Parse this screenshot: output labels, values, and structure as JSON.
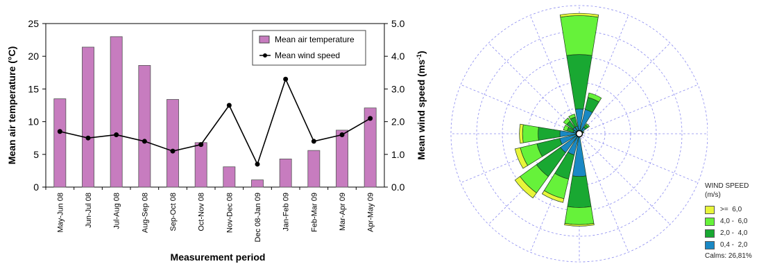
{
  "chart_data": [
    {
      "type": "bar",
      "xlabel": "Measurement period",
      "ylabel": "Mean air temperature (°C)",
      "y2label": "Mean wind speed (ms",
      "y2label_superscript": "-1",
      "y2label_close": ")",
      "categories": [
        "May-Jun 08",
        "Jun-Jul 08",
        "Jul-Aug 08",
        "Aug-Sep 08",
        "Sep-Oct 08",
        "Oct-Nov 08",
        "Nov-Dec 08",
        "Dec 08-Jan 09",
        "Jan-Feb 09",
        "Feb-Mar 09",
        "Mar-Apr 09",
        "Apr-May 09"
      ],
      "ylim": [
        0,
        25
      ],
      "yticks": [
        "0",
        "5",
        "10",
        "15",
        "20",
        "25"
      ],
      "y2lim": [
        0,
        5
      ],
      "y2ticks": [
        "0.0",
        "1.0",
        "2.0",
        "3.0",
        "4.0",
        "5.0"
      ],
      "series": [
        {
          "name": "Mean air temperature",
          "kind": "bar",
          "color": "#c77cbf",
          "values": [
            13.5,
            21.4,
            23.0,
            18.6,
            13.4,
            6.8,
            3.1,
            1.1,
            4.3,
            5.6,
            8.7,
            12.1
          ]
        },
        {
          "name": "Mean wind speed",
          "kind": "line",
          "axis": "right",
          "color": "#000000",
          "values": [
            1.7,
            1.5,
            1.6,
            1.4,
            1.1,
            1.3,
            2.5,
            0.7,
            3.3,
            1.4,
            1.6,
            2.1
          ]
        }
      ],
      "legend": "top-right"
    },
    {
      "type": "windrose",
      "legend_title_1": "WIND SPEED",
      "legend_title_2": "(m/s)",
      "bins": [
        {
          "label": ">=  6,0",
          "color": "#e8f53a"
        },
        {
          "label": "4,0 -  6,0",
          "color": "#66f23a"
        },
        {
          "label": "2,0 -  4,0",
          "color": "#19a832"
        },
        {
          "label": "0,4 -  2,0",
          "color": "#1a88c4"
        }
      ],
      "calms": "Calms: 26,81%",
      "rings": 5,
      "directions": [
        {
          "dir": 0,
          "values": [
            3.2,
            7.0,
            5.0,
            0.3
          ]
        },
        {
          "dir": 22.5,
          "values": [
            3.2,
            1.6,
            0.6,
            0.0
          ]
        },
        {
          "dir": 45,
          "values": [
            1.0,
            0.4,
            0.2,
            0.0
          ]
        },
        {
          "dir": 67.5,
          "values": [
            0.3,
            0.2,
            0.1,
            0.0
          ]
        },
        {
          "dir": 90,
          "values": [
            0.2,
            0.1,
            0.0,
            0.0
          ]
        },
        {
          "dir": 112.5,
          "values": [
            0.3,
            0.1,
            0.0,
            0.0
          ]
        },
        {
          "dir": 135,
          "values": [
            0.2,
            0.1,
            0.0,
            0.0
          ]
        },
        {
          "dir": 157.5,
          "values": [
            0.3,
            0.1,
            0.0,
            0.0
          ]
        },
        {
          "dir": 180,
          "values": [
            5.5,
            4.0,
            2.2,
            0.2
          ]
        },
        {
          "dir": 202.5,
          "values": [
            2.8,
            3.2,
            2.6,
            0.5
          ]
        },
        {
          "dir": 225,
          "values": [
            3.0,
            3.8,
            2.6,
            0.8
          ]
        },
        {
          "dir": 247.5,
          "values": [
            2.6,
            3.0,
            2.2,
            0.7
          ]
        },
        {
          "dir": 270,
          "values": [
            2.5,
            2.8,
            2.0,
            0.4
          ]
        },
        {
          "dir": 292.5,
          "values": [
            0.8,
            0.8,
            0.5,
            0.0
          ]
        },
        {
          "dir": 315,
          "values": [
            1.0,
            1.0,
            0.5,
            0.0
          ]
        },
        {
          "dir": 337.5,
          "values": [
            1.0,
            1.2,
            0.4,
            0.0
          ]
        }
      ]
    }
  ]
}
